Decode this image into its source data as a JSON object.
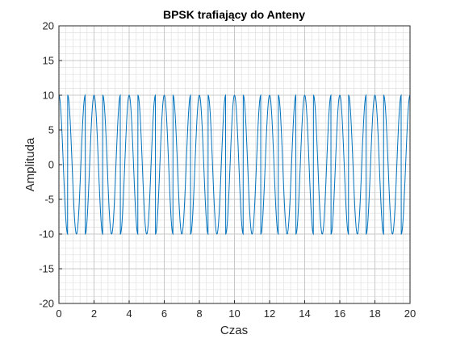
{
  "chart_data": {
    "type": "line",
    "title": "BPSK trafiający do Anteny",
    "xlabel": "Czas",
    "ylabel": "Amplituda",
    "xlim": [
      0,
      20
    ],
    "ylim": [
      -20,
      20
    ],
    "xticks": [
      0,
      2,
      4,
      6,
      8,
      10,
      12,
      14,
      16,
      18,
      20
    ],
    "xtick_labels": [
      "0",
      "2",
      "4",
      "6",
      "8",
      "10",
      "12",
      "14",
      "16",
      "18",
      "20"
    ],
    "yticks": [
      20,
      15,
      10,
      5,
      0,
      -5,
      -10,
      -15,
      -20
    ],
    "ytick_labels": [
      "20",
      "15",
      "10",
      "5",
      "0",
      "-5",
      "-10",
      "-15",
      "-20"
    ],
    "grid": true,
    "minor_grid": true,
    "minor_divisions": 5,
    "colors": {
      "series": "#0072bd",
      "major_grid": "#c8c8c8",
      "minor_grid": "#e0e0e0",
      "axes": "#262626"
    },
    "series": [
      {
        "signal": "sine",
        "amplitude": 10,
        "frequency": 1,
        "phase_flips_at": [
          0.5,
          1.5,
          2.5,
          3.5,
          4.5,
          5.5,
          6.5,
          7.5,
          8.5,
          9.5,
          10.5,
          11.5,
          12.5,
          13.5,
          14.5,
          15.5,
          16.5,
          17.5,
          18.5,
          19.5
        ]
      }
    ],
    "observed_peaks": [
      {
        "x": 0.0,
        "y": 10.0
      },
      {
        "x": 0.55,
        "y": -10.2
      },
      {
        "x": 1.0,
        "y": 10.1
      },
      {
        "x": 1.55,
        "y": -10.1
      },
      {
        "x": 2.0,
        "y": 10.1
      },
      {
        "x": 2.55,
        "y": -10.1
      },
      {
        "x": 3.0,
        "y": 10.2
      },
      {
        "x": 3.55,
        "y": -10.1
      },
      {
        "x": 4.0,
        "y": 10.1
      },
      {
        "x": 4.55,
        "y": -10.0
      },
      {
        "x": 5.05,
        "y": 9.8
      },
      {
        "x": 5.5,
        "y": -10.4
      },
      {
        "x": 6.0,
        "y": 10.4
      },
      {
        "x": 6.55,
        "y": -10.2
      },
      {
        "x": 7.0,
        "y": 9.8
      },
      {
        "x": 7.55,
        "y": -10.0
      },
      {
        "x": 8.0,
        "y": 9.8
      },
      {
        "x": 8.55,
        "y": -10.3
      },
      {
        "x": 9.0,
        "y": 10.7
      },
      {
        "x": 9.5,
        "y": -10.6
      },
      {
        "x": 10.0,
        "y": 10.7
      },
      {
        "x": 10.55,
        "y": -10.2
      },
      {
        "x": 11.0,
        "y": 10.2
      },
      {
        "x": 11.55,
        "y": -10.0
      },
      {
        "x": 12.05,
        "y": 10.3
      },
      {
        "x": 12.55,
        "y": -10.2
      },
      {
        "x": 13.0,
        "y": 10.2
      },
      {
        "x": 13.55,
        "y": -10.3
      },
      {
        "x": 14.05,
        "y": 10.3
      },
      {
        "x": 14.55,
        "y": -10.0
      },
      {
        "x": 15.0,
        "y": 10.3
      },
      {
        "x": 15.55,
        "y": -10.6
      },
      {
        "x": 16.0,
        "y": 10.4
      },
      {
        "x": 16.55,
        "y": -10.3
      },
      {
        "x": 17.0,
        "y": 10.3
      },
      {
        "x": 17.55,
        "y": -10.4
      },
      {
        "x": 18.05,
        "y": 10.2
      },
      {
        "x": 18.55,
        "y": -10.2
      },
      {
        "x": 19.05,
        "y": 10.4
      },
      {
        "x": 19.55,
        "y": -10.3
      },
      {
        "x": 20.0,
        "y": 10.4
      }
    ]
  }
}
